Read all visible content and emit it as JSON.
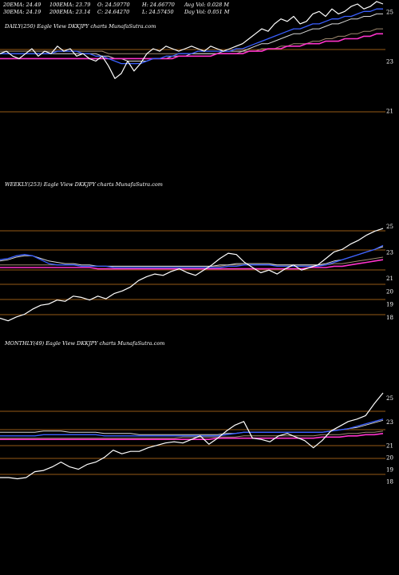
{
  "header": {
    "row1": [
      "20EMA: 24.49",
      "100EMA: 23.79",
      "O: 24.59770",
      "H: 24.66770",
      "Avg Vol: 0.028 M"
    ],
    "row2": [
      "30EMA: 24.19",
      "200EMA: 23.14",
      "C: 24.64270",
      "L: 24.57450",
      "Day Vol: 0.051 M"
    ]
  },
  "panels": [
    {
      "label": "DAILY(250) Eagle   View  DKKJPY charts MunafaSutra.com",
      "ticks": [
        "25",
        "23",
        "21"
      ]
    },
    {
      "label": "WEEKLY(253) Eagle   View  DKKJPY charts MunafaSutra.com",
      "ticks": [
        "25",
        "23",
        "21",
        "20",
        "19",
        "18"
      ]
    },
    {
      "label": "MONTHLY(49) Eagle   View  DKKJPY charts MunafaSutra.com",
      "ticks": [
        "25",
        "23",
        "21",
        "20",
        "19",
        "18"
      ]
    }
  ],
  "colors": {
    "price": "#ffffff",
    "ema20": "#3a5fff",
    "ema30": "#d8d8d8",
    "ema100": "#a08a70",
    "ema200": "#ff33cc",
    "grid": "#c8781e"
  },
  "chart_data": [
    {
      "type": "line",
      "xlabel": "",
      "ylabel": "",
      "ylim": [
        20.7,
        25.3
      ],
      "yticks": [
        25,
        23,
        21
      ],
      "price": [
        23.3,
        23.4,
        23.2,
        23.1,
        23.3,
        23.5,
        23.2,
        23.4,
        23.3,
        23.6,
        23.4,
        23.5,
        23.2,
        23.3,
        23.1,
        23.0,
        23.2,
        22.8,
        22.3,
        22.5,
        23.0,
        22.6,
        22.9,
        23.3,
        23.5,
        23.4,
        23.6,
        23.5,
        23.4,
        23.5,
        23.6,
        23.5,
        23.4,
        23.6,
        23.5,
        23.4,
        23.5,
        23.6,
        23.7,
        23.9,
        24.1,
        24.3,
        24.2,
        24.5,
        24.7,
        24.6,
        24.8,
        24.5,
        24.6,
        24.9,
        25.0,
        24.8,
        25.1,
        24.9,
        25.0,
        25.2,
        25.3,
        25.1,
        25.2,
        25.4,
        25.3
      ],
      "ema20": [
        23.3,
        23.3,
        23.3,
        23.3,
        23.3,
        23.3,
        23.3,
        23.3,
        23.3,
        23.4,
        23.4,
        23.4,
        23.4,
        23.3,
        23.3,
        23.2,
        23.2,
        23.1,
        23.0,
        22.9,
        22.9,
        22.9,
        22.9,
        23.0,
        23.1,
        23.1,
        23.2,
        23.2,
        23.3,
        23.3,
        23.3,
        23.4,
        23.4,
        23.4,
        23.4,
        23.4,
        23.4,
        23.5,
        23.5,
        23.6,
        23.7,
        23.8,
        23.9,
        24.0,
        24.1,
        24.2,
        24.3,
        24.3,
        24.4,
        24.5,
        24.5,
        24.6,
        24.7,
        24.7,
        24.8,
        24.8,
        24.9,
        25.0,
        25.0,
        25.1,
        25.1
      ],
      "ema30": [
        23.3,
        23.3,
        23.3,
        23.3,
        23.3,
        23.3,
        23.3,
        23.3,
        23.3,
        23.3,
        23.3,
        23.3,
        23.3,
        23.3,
        23.3,
        23.3,
        23.2,
        23.2,
        23.1,
        23.1,
        23.0,
        23.0,
        23.0,
        23.0,
        23.1,
        23.1,
        23.1,
        23.2,
        23.2,
        23.2,
        23.3,
        23.3,
        23.3,
        23.3,
        23.3,
        23.4,
        23.4,
        23.4,
        23.4,
        23.5,
        23.6,
        23.7,
        23.7,
        23.8,
        23.9,
        24.0,
        24.1,
        24.1,
        24.2,
        24.3,
        24.3,
        24.4,
        24.5,
        24.5,
        24.6,
        24.7,
        24.7,
        24.8,
        24.8,
        24.9,
        24.9
      ],
      "ema100": [
        23.4,
        23.4,
        23.4,
        23.4,
        23.4,
        23.4,
        23.4,
        23.4,
        23.4,
        23.4,
        23.4,
        23.4,
        23.4,
        23.4,
        23.4,
        23.4,
        23.4,
        23.3,
        23.3,
        23.3,
        23.3,
        23.3,
        23.3,
        23.3,
        23.3,
        23.3,
        23.3,
        23.3,
        23.3,
        23.3,
        23.3,
        23.3,
        23.3,
        23.3,
        23.3,
        23.3,
        23.3,
        23.3,
        23.4,
        23.4,
        23.4,
        23.5,
        23.5,
        23.5,
        23.6,
        23.6,
        23.7,
        23.7,
        23.7,
        23.8,
        23.8,
        23.9,
        23.9,
        24.0,
        24.0,
        24.1,
        24.1,
        24.2,
        24.2,
        24.3,
        24.3
      ],
      "ema200": [
        23.1,
        23.1,
        23.1,
        23.1,
        23.1,
        23.1,
        23.1,
        23.1,
        23.1,
        23.1,
        23.1,
        23.1,
        23.1,
        23.1,
        23.1,
        23.1,
        23.1,
        23.1,
        23.1,
        23.1,
        23.1,
        23.1,
        23.1,
        23.1,
        23.1,
        23.1,
        23.1,
        23.1,
        23.2,
        23.2,
        23.2,
        23.2,
        23.2,
        23.2,
        23.3,
        23.3,
        23.3,
        23.3,
        23.3,
        23.4,
        23.4,
        23.4,
        23.5,
        23.5,
        23.5,
        23.6,
        23.6,
        23.6,
        23.7,
        23.7,
        23.7,
        23.8,
        23.8,
        23.8,
        23.9,
        23.9,
        23.9,
        24.0,
        24.0,
        24.1,
        24.1
      ]
    },
    {
      "type": "line",
      "xlabel": "",
      "ylabel": "",
      "ylim": [
        17.5,
        25.3
      ],
      "yticks": [
        25,
        23,
        21,
        20,
        19,
        18
      ],
      "price": [
        17.9,
        17.7,
        18.0,
        18.2,
        18.6,
        18.9,
        19.0,
        19.3,
        19.2,
        19.6,
        19.5,
        19.3,
        19.6,
        19.4,
        19.8,
        20.0,
        20.3,
        20.8,
        21.1,
        21.3,
        21.2,
        21.5,
        21.7,
        21.4,
        21.2,
        21.6,
        22.0,
        22.5,
        22.9,
        22.8,
        22.2,
        21.8,
        21.4,
        21.6,
        21.3,
        21.7,
        22.0,
        21.6,
        21.8,
        22.0,
        22.5,
        23.0,
        23.2,
        23.6,
        23.9,
        24.3,
        24.6,
        24.8
      ],
      "ema20": [
        22.4,
        22.5,
        22.7,
        22.8,
        22.7,
        22.4,
        22.1,
        22.0,
        22.0,
        22.0,
        21.9,
        21.9,
        21.9,
        21.9,
        21.8,
        21.8,
        21.8,
        21.8,
        21.8,
        21.8,
        21.8,
        21.8,
        21.8,
        21.8,
        21.8,
        21.8,
        21.8,
        21.8,
        21.9,
        21.9,
        22.0,
        22.0,
        22.0,
        22.0,
        21.9,
        21.9,
        21.9,
        21.9,
        21.9,
        21.9,
        22.0,
        22.2,
        22.4,
        22.6,
        22.8,
        23.0,
        23.2,
        23.5
      ],
      "ema30": [
        22.3,
        22.4,
        22.6,
        22.7,
        22.7,
        22.5,
        22.3,
        22.2,
        22.1,
        22.1,
        22.0,
        22.0,
        21.9,
        21.9,
        21.9,
        21.9,
        21.9,
        21.9,
        21.9,
        21.9,
        21.9,
        21.9,
        21.9,
        21.9,
        21.9,
        21.9,
        21.9,
        22.0,
        22.0,
        22.1,
        22.1,
        22.1,
        22.1,
        22.1,
        22.0,
        22.0,
        22.0,
        22.0,
        22.0,
        22.0,
        22.1,
        22.3,
        22.4,
        22.6,
        22.8,
        23.0,
        23.2,
        23.4
      ],
      "ema100": [
        22.0,
        22.0,
        22.0,
        22.0,
        22.0,
        22.0,
        22.0,
        22.0,
        22.0,
        22.0,
        21.9,
        21.9,
        21.9,
        21.9,
        21.9,
        21.9,
        21.9,
        21.9,
        21.9,
        21.9,
        21.9,
        21.9,
        21.9,
        21.9,
        21.9,
        21.9,
        21.9,
        21.9,
        22.0,
        22.0,
        22.0,
        22.0,
        22.0,
        22.0,
        22.0,
        22.0,
        22.0,
        22.0,
        22.0,
        22.0,
        22.0,
        22.1,
        22.1,
        22.2,
        22.3,
        22.4,
        22.5,
        22.6
      ],
      "ema200": [
        21.8,
        21.8,
        21.8,
        21.8,
        21.8,
        21.8,
        21.8,
        21.8,
        21.8,
        21.8,
        21.8,
        21.8,
        21.7,
        21.7,
        21.7,
        21.7,
        21.7,
        21.7,
        21.7,
        21.7,
        21.7,
        21.7,
        21.7,
        21.7,
        21.7,
        21.7,
        21.7,
        21.7,
        21.7,
        21.7,
        21.7,
        21.7,
        21.7,
        21.7,
        21.7,
        21.7,
        21.7,
        21.7,
        21.8,
        21.8,
        21.8,
        21.9,
        21.9,
        22.0,
        22.1,
        22.2,
        22.3,
        22.4
      ]
    },
    {
      "type": "line",
      "xlabel": "",
      "ylabel": "",
      "ylim": [
        17.5,
        25.8
      ],
      "yticks": [
        25,
        23,
        21,
        20,
        19,
        18
      ],
      "price": [
        18.3,
        18.3,
        18.2,
        18.3,
        18.8,
        18.9,
        19.2,
        19.6,
        19.2,
        19.0,
        19.4,
        19.6,
        20.0,
        20.6,
        20.3,
        20.5,
        20.5,
        20.8,
        21.0,
        21.2,
        21.3,
        21.2,
        21.5,
        21.8,
        21.1,
        21.6,
        22.2,
        22.7,
        23.0,
        21.6,
        21.5,
        21.3,
        21.8,
        22.0,
        21.7,
        21.4,
        20.8,
        21.4,
        22.2,
        22.6,
        23.0,
        23.2,
        23.5,
        24.5,
        25.4
      ],
      "ema20": [
        21.8,
        21.8,
        21.8,
        21.8,
        21.8,
        21.9,
        21.9,
        21.9,
        21.9,
        21.9,
        21.9,
        21.9,
        21.8,
        21.8,
        21.8,
        21.8,
        21.8,
        21.8,
        21.8,
        21.8,
        21.8,
        21.8,
        21.8,
        21.8,
        21.8,
        21.8,
        21.9,
        22.0,
        22.1,
        22.1,
        22.1,
        22.1,
        22.1,
        22.1,
        22.1,
        22.1,
        22.1,
        22.1,
        22.2,
        22.3,
        22.4,
        22.6,
        22.8,
        23.0,
        23.2
      ],
      "ema30": [
        22.1,
        22.1,
        22.1,
        22.1,
        22.1,
        22.2,
        22.2,
        22.2,
        22.1,
        22.1,
        22.1,
        22.1,
        22.0,
        22.0,
        22.0,
        22.0,
        21.9,
        21.9,
        21.9,
        21.9,
        21.9,
        21.9,
        21.9,
        21.9,
        21.9,
        21.9,
        22.0,
        22.0,
        22.1,
        22.1,
        22.1,
        22.1,
        22.1,
        22.1,
        22.1,
        22.1,
        22.1,
        22.1,
        22.2,
        22.3,
        22.4,
        22.5,
        22.7,
        22.9,
        23.1
      ],
      "ema100": [
        21.6,
        21.6,
        21.6,
        21.6,
        21.6,
        21.6,
        21.6,
        21.6,
        21.6,
        21.6,
        21.6,
        21.6,
        21.6,
        21.6,
        21.6,
        21.6,
        21.6,
        21.6,
        21.6,
        21.6,
        21.6,
        21.7,
        21.7,
        21.7,
        21.7,
        21.7,
        21.7,
        21.7,
        21.8,
        21.8,
        21.8,
        21.8,
        21.8,
        21.8,
        21.8,
        21.8,
        21.8,
        21.9,
        21.9,
        21.9,
        22.0,
        22.0,
        22.1,
        22.1,
        22.2
      ],
      "ema200": [
        21.5,
        21.5,
        21.5,
        21.5,
        21.5,
        21.5,
        21.5,
        21.5,
        21.5,
        21.5,
        21.5,
        21.5,
        21.5,
        21.5,
        21.5,
        21.5,
        21.5,
        21.5,
        21.5,
        21.5,
        21.5,
        21.5,
        21.5,
        21.5,
        21.5,
        21.6,
        21.6,
        21.6,
        21.6,
        21.6,
        21.6,
        21.6,
        21.6,
        21.6,
        21.6,
        21.6,
        21.6,
        21.7,
        21.7,
        21.7,
        21.8,
        21.8,
        21.9,
        21.9,
        22.0
      ]
    }
  ]
}
